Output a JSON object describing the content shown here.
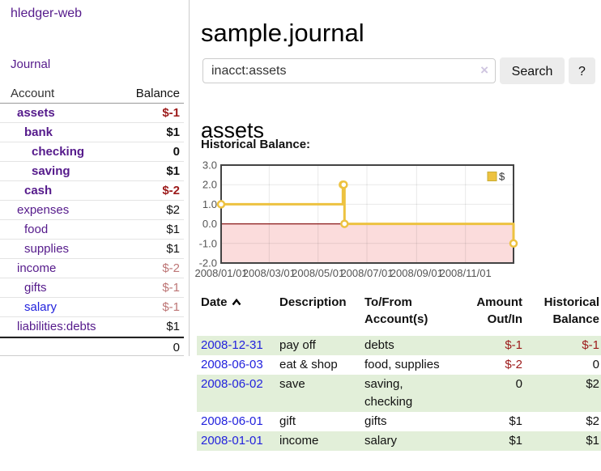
{
  "sidebar": {
    "app_title": "hledger-web",
    "journal_link": "Journal",
    "table": {
      "account_header": "Account",
      "balance_header": "Balance",
      "accounts": [
        {
          "name": "assets",
          "indent": 1,
          "balance": "$-1",
          "bold": true,
          "balance_style": "neg"
        },
        {
          "name": "bank",
          "indent": 2,
          "balance": "$1",
          "bold": true,
          "balance_style": "pos"
        },
        {
          "name": "checking",
          "indent": 3,
          "balance": "0",
          "bold": true,
          "balance_style": "pos"
        },
        {
          "name": "saving",
          "indent": 3,
          "balance": "$1",
          "bold": true,
          "balance_style": "pos"
        },
        {
          "name": "cash",
          "indent": 2,
          "balance": "$-2",
          "bold": true,
          "balance_style": "neg"
        },
        {
          "name": "expenses",
          "indent": 1,
          "balance": "$2",
          "bold": false,
          "balance_style": "pos"
        },
        {
          "name": "food",
          "indent": 2,
          "balance": "$1",
          "bold": false,
          "balance_style": "pos"
        },
        {
          "name": "supplies",
          "indent": 2,
          "balance": "$1",
          "bold": false,
          "balance_style": "pos"
        },
        {
          "name": "income",
          "indent": 1,
          "balance": "$-2",
          "bold": false,
          "balance_style": "neg-dim"
        },
        {
          "name": "gifts",
          "indent": 2,
          "balance": "$-1",
          "bold": false,
          "balance_style": "neg-dim"
        },
        {
          "name": "salary",
          "indent": 2,
          "balance": "$-1",
          "bold": false,
          "balance_style": "neg-dim",
          "name_style": "blue"
        },
        {
          "name": "liabilities:debts",
          "indent": 1,
          "balance": "$1",
          "bold": false,
          "balance_style": "pos"
        }
      ],
      "total": "0"
    }
  },
  "main": {
    "title": "sample.journal",
    "search": {
      "value": "inacct:assets",
      "clear_icon": "×",
      "button_label": "Search",
      "help_label": "?"
    },
    "account_heading": "assets",
    "chart_label": "Historical Balance:"
  },
  "chart_data": {
    "type": "line",
    "line_style": "steps",
    "title": "Historical Balance",
    "series": [
      {
        "name": "$",
        "x": [
          "2008-01-01",
          "2008-06-01",
          "2008-06-02",
          "2008-06-03",
          "2008-12-31"
        ],
        "values": [
          1,
          2,
          2,
          0,
          -1
        ]
      }
    ],
    "xlim": [
      "2008-01-01",
      "2008-12-31"
    ],
    "ylim": [
      -2,
      3
    ],
    "yticks": [
      -2,
      -1,
      0,
      1,
      2,
      3
    ],
    "ytick_labels": [
      "-2.0",
      "-1.0",
      "0.0",
      "1.0",
      "2.0",
      "3.0"
    ],
    "xticks": [
      "2008-01-01",
      "2008-03-01",
      "2008-05-01",
      "2008-07-01",
      "2008-09-01",
      "2008-11-01"
    ],
    "xtick_labels": [
      "2008/01/01",
      "2008/03/01",
      "2008/05/01",
      "2008/07/01",
      "2008/09/01",
      "2008/11/01"
    ],
    "legend": {
      "label": "$",
      "position": "top-right"
    },
    "grid": true,
    "colors": {
      "line": "#edc240",
      "negative_fill": "#fbdcdc",
      "zero_line": "#8b1a1a",
      "grid": "rgba(0,0,0,0.09)",
      "border": "#434343",
      "axis_text": "#545454"
    }
  },
  "register": {
    "headers": {
      "date": "Date",
      "description": "Description",
      "accounts": "To/From Account(s)",
      "amount": "Amount Out/In",
      "balance": "Historical Balance"
    },
    "rows": [
      {
        "date": "2008-12-31",
        "description": "pay off",
        "accounts": "debts",
        "amount": "$-1",
        "amount_neg": true,
        "balance": "$-1",
        "balance_neg": true,
        "green": true
      },
      {
        "date": "2008-06-03",
        "description": "eat & shop",
        "accounts": "food, supplies",
        "amount": "$-2",
        "amount_neg": true,
        "balance": "0",
        "balance_neg": false,
        "green": false
      },
      {
        "date": "2008-06-02",
        "description": "save",
        "accounts": "saving, checking",
        "amount": "0",
        "amount_neg": false,
        "balance": "$2",
        "balance_neg": false,
        "green": true
      },
      {
        "date": "2008-06-01",
        "description": "gift",
        "accounts": "gifts",
        "amount": "$1",
        "amount_neg": false,
        "balance": "$2",
        "balance_neg": false,
        "green": false
      },
      {
        "date": "2008-01-01",
        "description": "income",
        "accounts": "salary",
        "amount": "$1",
        "amount_neg": false,
        "balance": "$1",
        "balance_neg": false,
        "green": true
      }
    ]
  }
}
